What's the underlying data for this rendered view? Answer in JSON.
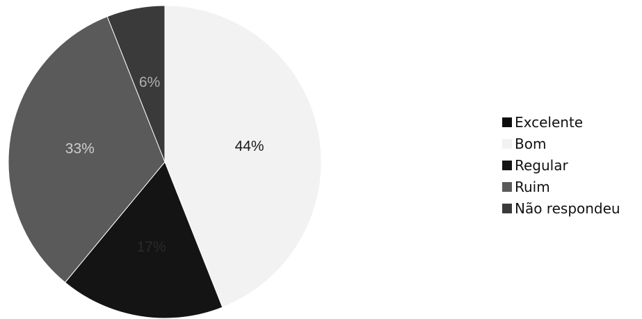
{
  "chart_data": {
    "type": "pie",
    "title": "",
    "categories": [
      "Excelente",
      "Bom",
      "Regular",
      "Ruim",
      "Não respondeu"
    ],
    "values": [
      0,
      44,
      17,
      33,
      6
    ],
    "slice_labels": [
      "",
      "44%",
      "17%",
      "33%",
      "6%"
    ],
    "start_angle_deg": 0,
    "direction": "clockwise",
    "colors": {
      "Excelente": "#0d0d0d",
      "Bom": "#f2f2f2",
      "Regular": "#141414",
      "Ruim": "#5a5a5a",
      "Não respondeu": "#3a3a3a"
    },
    "label_colors": {
      "Bom": "#1a1a1a",
      "Regular": "#2a2a2a",
      "Ruim": "#cfcfcf",
      "Não respondeu": "#b0b0b0"
    },
    "legend_position": "right"
  }
}
